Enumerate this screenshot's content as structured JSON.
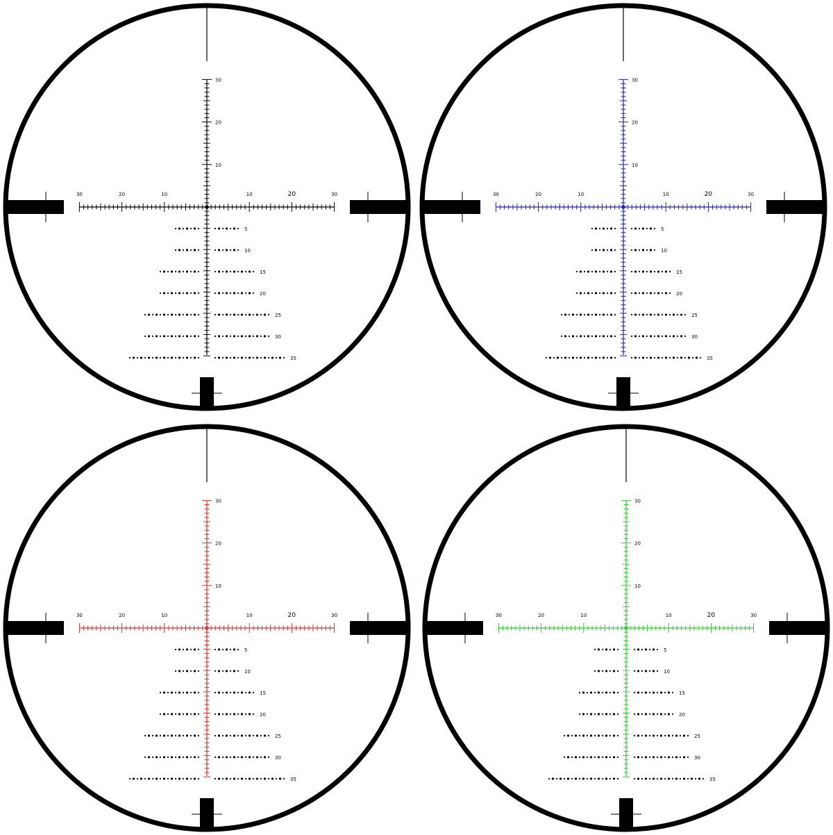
{
  "reticles": [
    {
      "id": "black",
      "accent": "#000000"
    },
    {
      "id": "blue",
      "accent": "#2020c0"
    },
    {
      "id": "red",
      "accent": "#e03030"
    },
    {
      "id": "green",
      "accent": "#33cc33"
    }
  ],
  "scale": {
    "horizontal_left_labels": [
      "30",
      "20",
      "10"
    ],
    "horizontal_right_labels": [
      "10",
      "20",
      "30"
    ],
    "vertical_labels": [
      "30",
      "20",
      "10"
    ]
  },
  "holdover_rows": [
    {
      "label": "5",
      "dots_each_side": 7
    },
    {
      "label": "10",
      "dots_each_side": 7
    },
    {
      "label": "15",
      "dots_each_side": 11
    },
    {
      "label": "20",
      "dots_each_side": 11
    },
    {
      "label": "25",
      "dots_each_side": 15
    },
    {
      "label": "30",
      "dots_each_side": 15
    },
    {
      "label": "35",
      "dots_each_side": 19
    }
  ],
  "colors": {
    "ring": "#000000",
    "posts": "#000000",
    "dots": "#000000",
    "background": "#ffffff"
  }
}
